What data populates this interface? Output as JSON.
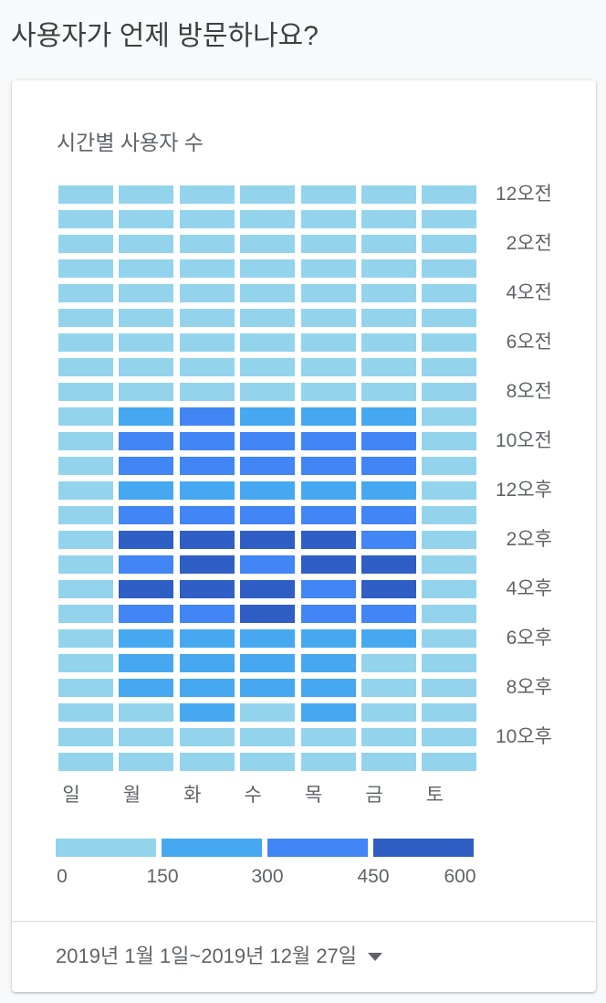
{
  "page": {
    "title": "사용자가 언제 방문하나요?"
  },
  "card": {
    "date_range": "2019년 1월 1일~2019년 12월 27일"
  },
  "colors": {
    "bin0": "#93d4ec",
    "bin1": "#46a8f0",
    "bin2": "#4285f4",
    "bin3": "#2f5ec4"
  },
  "chart_data": {
    "type": "heatmap",
    "title": "시간별 사용자 수",
    "x": [
      "일",
      "월",
      "화",
      "수",
      "목",
      "금",
      "토"
    ],
    "y_ticks": [
      "12오전",
      "2오전",
      "4오전",
      "6오전",
      "8오전",
      "10오전",
      "12오후",
      "2오후",
      "4오후",
      "6오후",
      "8오후",
      "10오후"
    ],
    "y_unit": "hour of day (0-23)",
    "legend": {
      "ticks": [
        "0",
        "150",
        "300",
        "450",
        "600"
      ],
      "bins": [
        [
          0,
          150
        ],
        [
          150,
          300
        ],
        [
          300,
          450
        ],
        [
          450,
          600
        ]
      ]
    },
    "values": [
      [
        40,
        40,
        40,
        40,
        40,
        40,
        40
      ],
      [
        40,
        40,
        40,
        40,
        40,
        40,
        40
      ],
      [
        40,
        40,
        40,
        40,
        40,
        40,
        40
      ],
      [
        40,
        40,
        40,
        40,
        40,
        40,
        40
      ],
      [
        40,
        40,
        40,
        40,
        40,
        40,
        40
      ],
      [
        40,
        40,
        40,
        40,
        40,
        40,
        40
      ],
      [
        40,
        40,
        40,
        40,
        40,
        40,
        40
      ],
      [
        40,
        40,
        40,
        40,
        40,
        40,
        40
      ],
      [
        40,
        40,
        40,
        40,
        40,
        40,
        40
      ],
      [
        60,
        250,
        380,
        250,
        250,
        250,
        60
      ],
      [
        60,
        380,
        380,
        380,
        380,
        380,
        60
      ],
      [
        60,
        380,
        380,
        380,
        380,
        380,
        60
      ],
      [
        60,
        250,
        250,
        250,
        250,
        250,
        60
      ],
      [
        60,
        380,
        380,
        380,
        380,
        380,
        60
      ],
      [
        60,
        520,
        520,
        520,
        520,
        380,
        60
      ],
      [
        60,
        380,
        520,
        380,
        520,
        520,
        60
      ],
      [
        60,
        520,
        520,
        520,
        380,
        520,
        60
      ],
      [
        60,
        380,
        380,
        520,
        380,
        380,
        60
      ],
      [
        60,
        250,
        250,
        250,
        250,
        250,
        60
      ],
      [
        60,
        250,
        250,
        250,
        250,
        60,
        60
      ],
      [
        60,
        250,
        250,
        250,
        250,
        60,
        60
      ],
      [
        60,
        60,
        250,
        60,
        250,
        60,
        60
      ],
      [
        40,
        40,
        40,
        40,
        40,
        40,
        40
      ],
      [
        40,
        40,
        40,
        40,
        40,
        40,
        40
      ]
    ]
  }
}
